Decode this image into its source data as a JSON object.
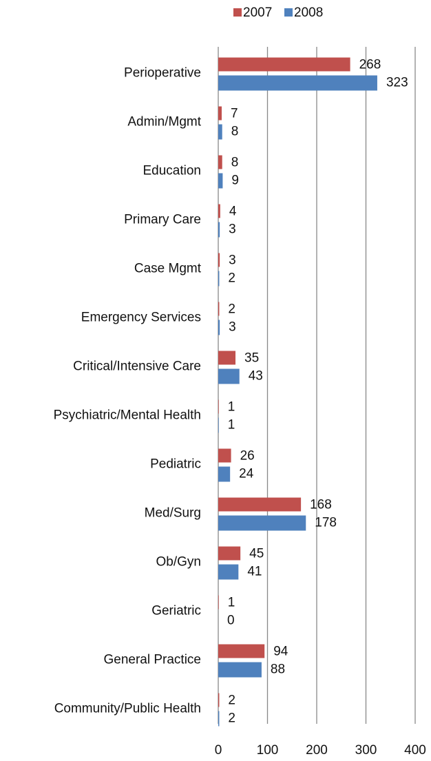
{
  "chart_data": {
    "type": "bar",
    "orientation": "horizontal",
    "categories": [
      "Perioperative",
      "Admin/Mgmt",
      "Education",
      "Primary Care",
      "Case Mgmt",
      "Emergency Services",
      "Critical/Intensive Care",
      "Psychiatric/Mental Health",
      "Pediatric",
      "Med/Surg",
      "Ob/Gyn",
      "Geriatric",
      "General Practice",
      "Community/Public Health"
    ],
    "series": [
      {
        "name": "2007",
        "color": "#c0504d",
        "values": [
          268,
          7,
          8,
          4,
          3,
          2,
          35,
          1,
          26,
          168,
          45,
          1,
          94,
          2
        ]
      },
      {
        "name": "2008",
        "color": "#4f81bd",
        "values": [
          323,
          8,
          9,
          3,
          2,
          3,
          43,
          1,
          24,
          178,
          41,
          0,
          88,
          2
        ]
      }
    ],
    "xlim": [
      0,
      400
    ],
    "xticks": [
      0,
      100,
      200,
      300,
      400
    ],
    "grid": true,
    "legend": "top"
  }
}
